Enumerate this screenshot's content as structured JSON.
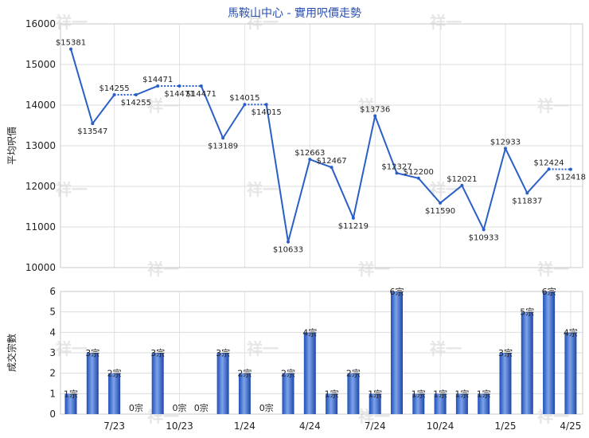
{
  "chart_data": [
    {
      "type": "line",
      "title": "馬鞍山中心 - 實用呎價走勢",
      "ylabel": "平均呎價",
      "ylim": [
        10000,
        16000
      ],
      "yticks": [
        "10000",
        "11000",
        "12000",
        "13000",
        "14000",
        "15000",
        "16000"
      ],
      "grid": true,
      "line_color": "#2a5fc7",
      "values": [
        15381,
        13547,
        14255,
        14255,
        14471,
        14471,
        14471,
        13189,
        14015,
        14015,
        10633,
        12663,
        12467,
        11219,
        13736,
        12327,
        12200,
        11590,
        12021,
        10933,
        12933,
        11837,
        12424,
        12418
      ],
      "labels": [
        "$15381",
        "$13547",
        "$14255",
        "$14255",
        "$14471",
        "$14471",
        "$14471",
        "$13189",
        "$14015",
        "$14015",
        "$10633",
        "$12663",
        "$12467",
        "$11219",
        "$13736",
        "$12327",
        "$12200",
        "$11590",
        "$12021",
        "$10933",
        "$12933",
        "$11837",
        "$12424",
        "$12418"
      ],
      "dotted_segments": [
        [
          2,
          3
        ],
        [
          4,
          5
        ],
        [
          5,
          6
        ],
        [
          8,
          9
        ],
        [
          22,
          23
        ]
      ]
    },
    {
      "type": "bar",
      "ylabel": "成交宗數",
      "ylim": [
        0,
        6
      ],
      "yticks": [
        "0",
        "1",
        "2",
        "3",
        "4",
        "5",
        "6"
      ],
      "bar_color": "#2f5ec6",
      "values": [
        1,
        3,
        2,
        0,
        3,
        0,
        0,
        3,
        2,
        0,
        2,
        4,
        1,
        2,
        1,
        6,
        1,
        1,
        1,
        1,
        3,
        5,
        6,
        4
      ],
      "labels": [
        "1宗",
        "3宗",
        "2宗",
        "0宗",
        "3宗",
        "0宗",
        "0宗",
        "3宗",
        "2宗",
        "0宗",
        "2宗",
        "4宗",
        "1宗",
        "2宗",
        "1宗",
        "6宗",
        "1宗",
        "1宗",
        "1宗",
        "1宗",
        "3宗",
        "5宗",
        "6宗",
        "4宗"
      ],
      "x_tick_labels": [
        "7/23",
        "10/23",
        "1/24",
        "4/24",
        "7/24",
        "10/24",
        "1/25",
        "4/25"
      ]
    }
  ],
  "watermark": "祥一"
}
